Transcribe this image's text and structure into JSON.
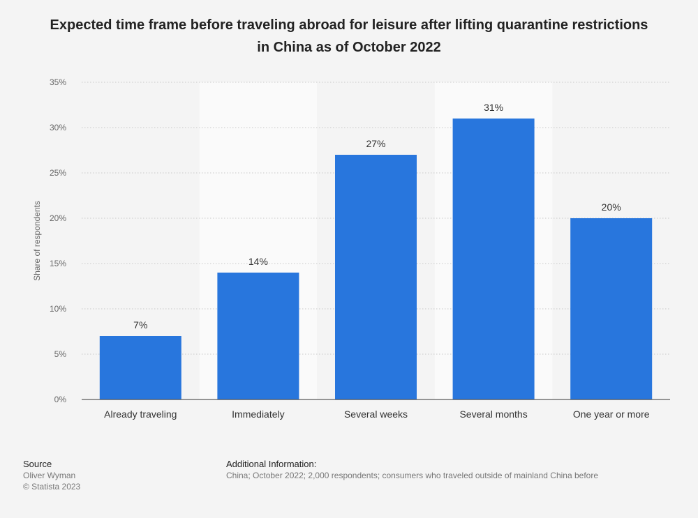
{
  "chart_data": {
    "type": "bar",
    "title": "Expected time frame before traveling abroad for leisure after lifting quarantine restrictions in China as of October 2022",
    "xlabel": "",
    "ylabel": "Share of respondents",
    "categories": [
      "Already traveling",
      "Immediately",
      "Several weeks",
      "Several months",
      "One year or more"
    ],
    "values": [
      7,
      14,
      27,
      31,
      20
    ],
    "data_labels": [
      "7%",
      "14%",
      "27%",
      "31%",
      "20%"
    ],
    "ylim": [
      0,
      35
    ],
    "yticks": [
      0,
      5,
      10,
      15,
      20,
      25,
      30,
      35
    ],
    "ytick_labels": [
      "0%",
      "5%",
      "10%",
      "15%",
      "20%",
      "25%",
      "30%",
      "35%"
    ],
    "grid": true,
    "bar_color": "#2876dd"
  },
  "footer": {
    "source_heading": "Source",
    "source_name": "Oliver Wyman",
    "copyright": "© Statista 2023",
    "additional_heading": "Additional Information:",
    "additional_text": "China; October 2022; 2,000 respondents; consumers who traveled outside of mainland China before"
  }
}
